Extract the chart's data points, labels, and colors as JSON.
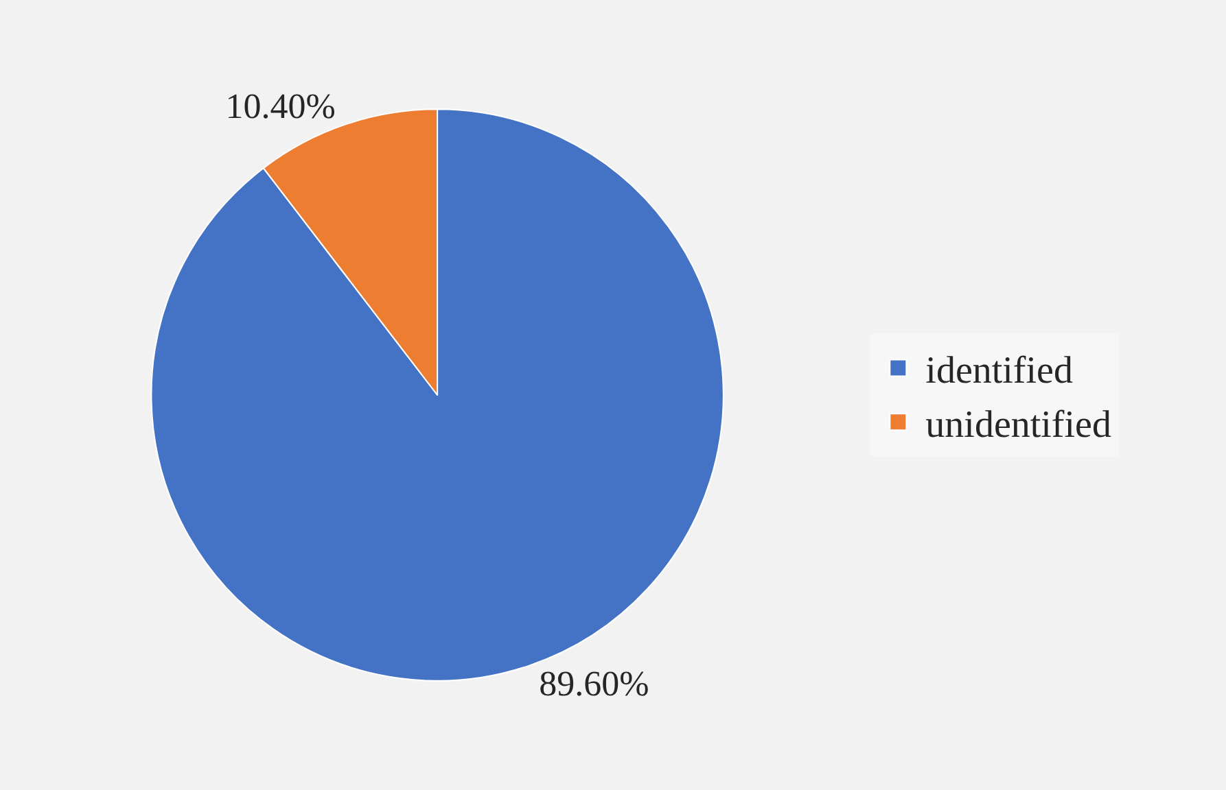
{
  "chart_data": {
    "type": "pie",
    "categories": [
      "identified",
      "unidentified"
    ],
    "values": [
      89.6,
      10.4
    ],
    "colors": [
      "#4472c4",
      "#ed7d31"
    ],
    "value_labels": [
      "89.60%",
      "10.40%"
    ],
    "legend": "right"
  }
}
